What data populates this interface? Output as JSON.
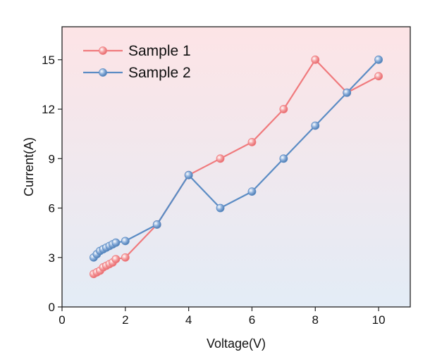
{
  "chart_data": {
    "type": "line",
    "title": "",
    "xlabel": "Voltage(V)",
    "ylabel": "Current(A)",
    "xlim": [
      0,
      11
    ],
    "ylim": [
      0,
      17
    ],
    "xticks": [
      0,
      2,
      4,
      6,
      8,
      10
    ],
    "yticks": [
      0,
      3,
      6,
      9,
      12,
      15
    ],
    "legend": {
      "placement": "top-left"
    },
    "background": {
      "top_color": "#fde4e6",
      "bottom_color": "#e3ecf6"
    },
    "series": [
      {
        "name": "Sample 1",
        "color": "#f07a7d",
        "x": [
          1.0,
          1.1,
          1.2,
          1.3,
          1.4,
          1.5,
          1.6,
          1.7,
          2,
          3,
          4,
          5,
          6,
          7,
          8,
          9,
          10
        ],
        "y": [
          2.0,
          2.1,
          2.2,
          2.4,
          2.5,
          2.6,
          2.7,
          2.9,
          3,
          5,
          8,
          9,
          10,
          12,
          15,
          13,
          14
        ]
      },
      {
        "name": "Sample 2",
        "color": "#5b8cc4",
        "x": [
          1.0,
          1.1,
          1.2,
          1.3,
          1.4,
          1.5,
          1.6,
          1.7,
          2,
          3,
          4,
          5,
          6,
          7,
          8,
          9,
          10
        ],
        "y": [
          3.0,
          3.2,
          3.4,
          3.5,
          3.6,
          3.7,
          3.8,
          3.9,
          4,
          5,
          8,
          6,
          7,
          9,
          11,
          13,
          15
        ]
      }
    ]
  }
}
